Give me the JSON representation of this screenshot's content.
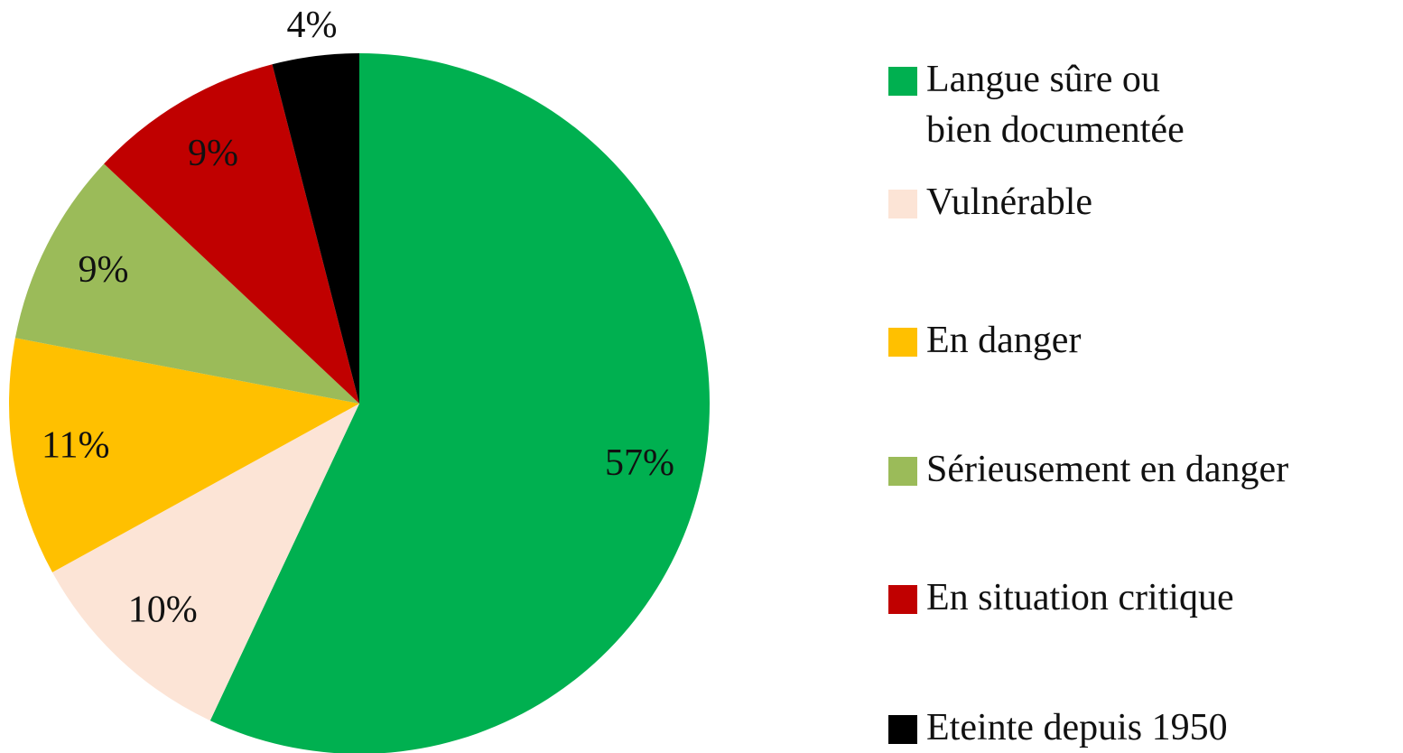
{
  "chart_data": {
    "type": "pie",
    "categories": [
      "Langue sûre ou bien documentée",
      "Vulnérable",
      "En danger",
      "Sérieusement en danger",
      "En situation critique",
      "Eteinte depuis 1950"
    ],
    "values": [
      57,
      10,
      11,
      9,
      9,
      4
    ],
    "value_labels": [
      "57%",
      "10%",
      "11%",
      "9%",
      "9%",
      "4%"
    ],
    "colors": [
      "#00b050",
      "#fce4d6",
      "#ffc000",
      "#9bbb59",
      "#c00000",
      "#000000"
    ],
    "legend": "right"
  }
}
